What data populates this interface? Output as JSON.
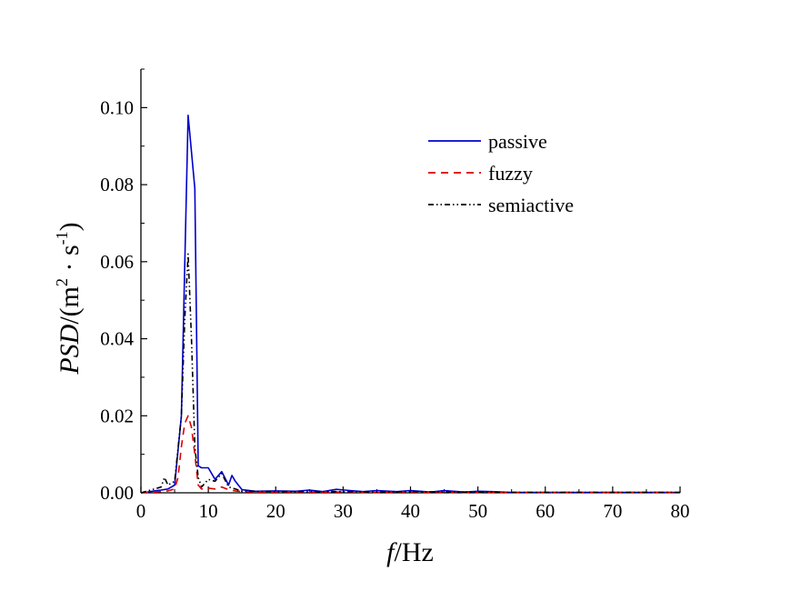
{
  "chart_data": {
    "type": "line",
    "title": "",
    "xlabel": {
      "var": "f",
      "unit": "/Hz"
    },
    "ylabel": {
      "var": "PSD",
      "unit_prefix": "/(m",
      "sup1": "2",
      "mid": " · s",
      "sup2": "-1",
      "unit_suffix": ")"
    },
    "xlim": [
      0,
      80
    ],
    "ylim": [
      0,
      0.11
    ],
    "xticks": [
      0,
      10,
      20,
      30,
      40,
      50,
      60,
      70,
      80
    ],
    "xtick_labels": [
      "0",
      "10",
      "20",
      "30",
      "40",
      "50",
      "60",
      "70",
      "80"
    ],
    "yticks": [
      0,
      0.02,
      0.04,
      0.06,
      0.08,
      0.1
    ],
    "ytick_labels": [
      "0.00",
      "0.02",
      "0.04",
      "0.06",
      "0.08",
      "0.10"
    ],
    "grid": false,
    "legend_position": "top-right",
    "series": [
      {
        "name": "passive",
        "color": "#0000cc",
        "style": "solid",
        "x": [
          0,
          1,
          2,
          3,
          4,
          5,
          6,
          7,
          8,
          8.5,
          9,
          10,
          11,
          12,
          13,
          13.5,
          14,
          15,
          17,
          20,
          23,
          25,
          27,
          29,
          31,
          33,
          35,
          38,
          40,
          43,
          45,
          48,
          50,
          52,
          55,
          60,
          70,
          80
        ],
        "y": [
          0.0,
          0.0002,
          0.0005,
          0.0007,
          0.001,
          0.002,
          0.02,
          0.098,
          0.079,
          0.007,
          0.0065,
          0.0065,
          0.0035,
          0.0055,
          0.002,
          0.0045,
          0.003,
          0.0008,
          0.0004,
          0.0005,
          0.0004,
          0.0007,
          0.0003,
          0.0009,
          0.0006,
          0.0003,
          0.0006,
          0.0003,
          0.0006,
          0.0002,
          0.0006,
          0.0002,
          0.0004,
          0.0003,
          0.0001,
          0.0001,
          0.0001,
          0.0001
        ]
      },
      {
        "name": "fuzzy",
        "color": "#dd0000",
        "style": "dashed",
        "x": [
          0,
          1,
          2,
          3,
          4,
          5,
          5.5,
          6,
          6.5,
          7,
          7.5,
          8,
          8.5,
          9,
          10,
          11,
          12,
          13,
          14,
          15,
          17,
          20,
          25,
          30,
          35,
          40,
          45,
          50,
          55,
          60,
          70,
          80
        ],
        "y": [
          0.0,
          0.0001,
          0.0002,
          0.0003,
          0.0005,
          0.001,
          0.004,
          0.012,
          0.018,
          0.02,
          0.017,
          0.01,
          0.002,
          0.001,
          0.0012,
          0.001,
          0.0015,
          0.0008,
          0.0005,
          0.0003,
          0.0002,
          0.0002,
          0.0002,
          0.0002,
          0.0001,
          0.0002,
          0.0001,
          0.0001,
          0.0001,
          0.0001,
          0.0001,
          0.0001
        ]
      },
      {
        "name": "semiactive",
        "color": "#000000",
        "style": "dashdotdot",
        "x": [
          0,
          1,
          2,
          3,
          3.5,
          4,
          5,
          6,
          6.5,
          7,
          7.5,
          8,
          8.5,
          9,
          10,
          11,
          12,
          13,
          14,
          15,
          17,
          20,
          25,
          30,
          35,
          40,
          45,
          50,
          55,
          60,
          70,
          80
        ],
        "y": [
          0.0,
          0.0005,
          0.001,
          0.0015,
          0.004,
          0.002,
          0.003,
          0.02,
          0.045,
          0.062,
          0.04,
          0.012,
          0.004,
          0.0015,
          0.0035,
          0.003,
          0.005,
          0.0015,
          0.001,
          0.0004,
          0.0004,
          0.0003,
          0.0003,
          0.0003,
          0.0002,
          0.0003,
          0.0002,
          0.0002,
          0.0001,
          0.0001,
          0.0001,
          0.0001
        ]
      }
    ]
  }
}
